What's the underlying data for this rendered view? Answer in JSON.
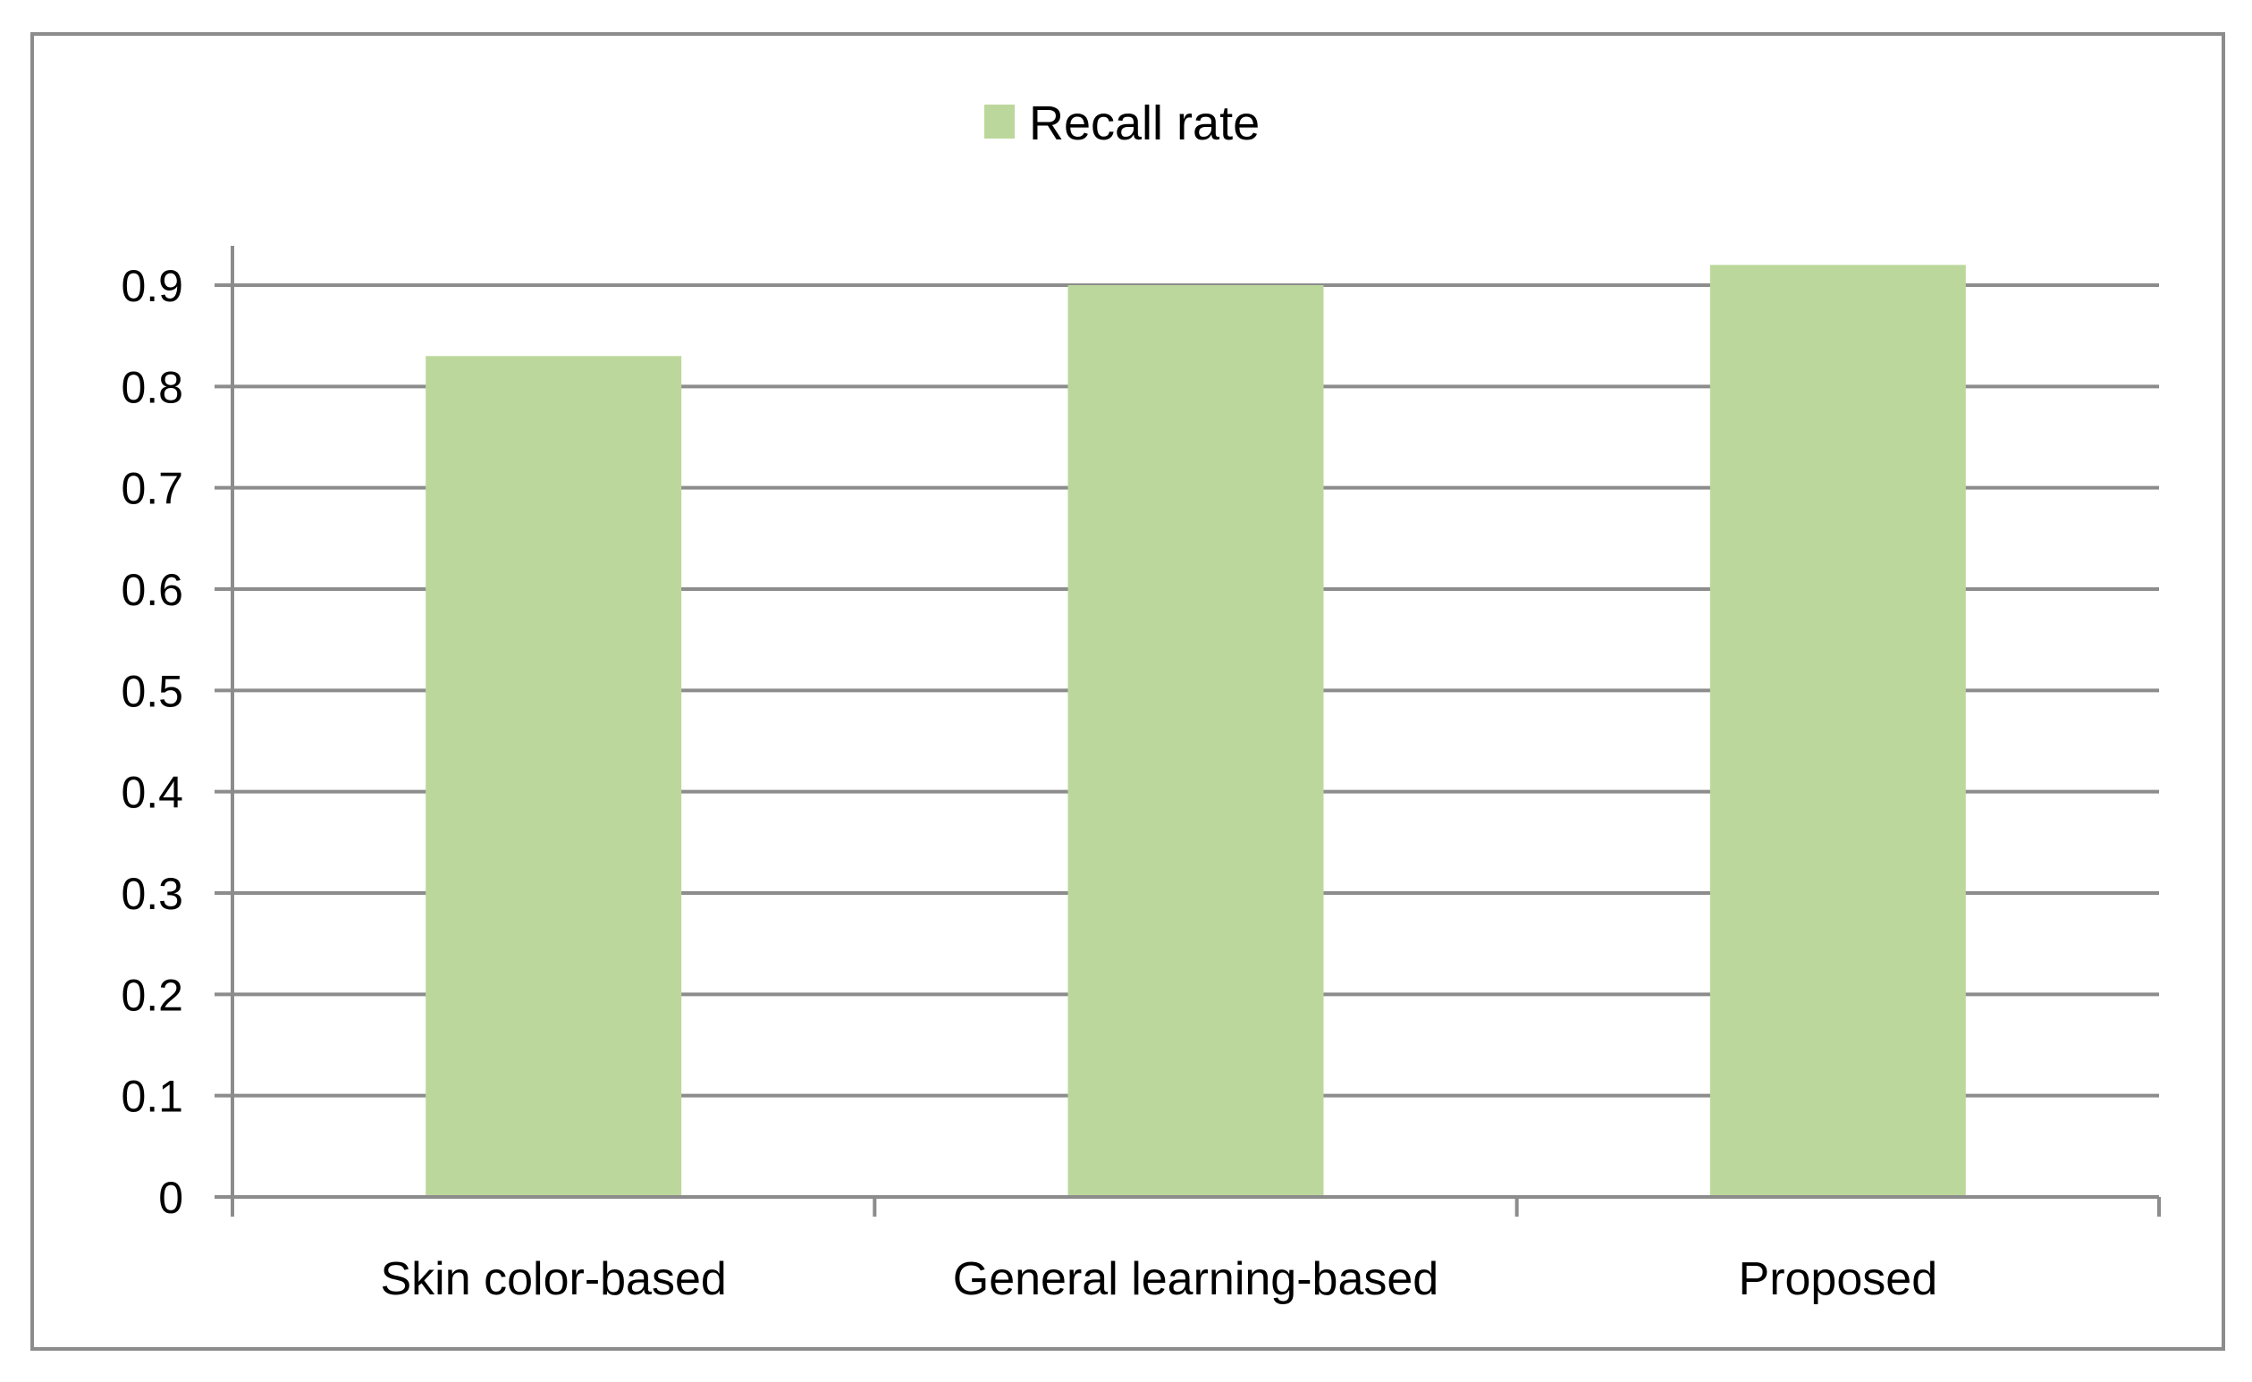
{
  "chart_data": {
    "type": "bar",
    "categories": [
      "Skin color-based",
      "General learning-based",
      "Proposed"
    ],
    "series": [
      {
        "name": "Recall rate",
        "values": [
          0.83,
          0.9,
          0.92
        ],
        "color": "#bcd79b"
      }
    ],
    "ylim": [
      0,
      0.9
    ],
    "yticks": [
      "0",
      "0.1",
      "0.2",
      "0.3",
      "0.4",
      "0.5",
      "0.6",
      "0.7",
      "0.8",
      "0.9"
    ],
    "grid": true,
    "gridline_color": "#8c8c8c",
    "legend_position": "top",
    "title": "",
    "xlabel": "",
    "ylabel": ""
  }
}
